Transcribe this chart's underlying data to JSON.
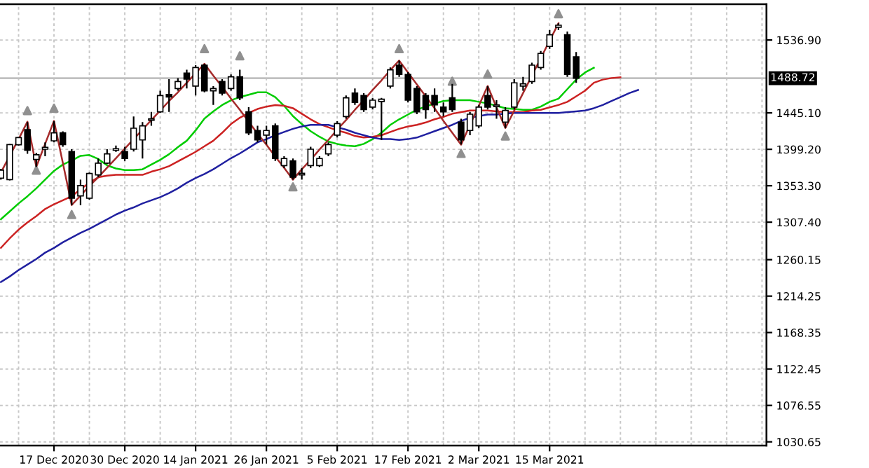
{
  "chart_data": {
    "type": "candlestick",
    "categories": [
      null,
      null,
      null,
      null,
      null,
      null,
      "17 Dec 2020",
      null,
      null,
      null,
      null,
      null,
      null,
      null,
      "30 Dec 2020",
      null,
      null,
      null,
      null,
      null,
      null,
      null,
      "14 Jan 2021",
      null,
      null,
      null,
      null,
      null,
      null,
      null,
      "26 Jan 2021",
      null,
      null,
      null,
      null,
      null,
      null,
      null,
      "5 Feb 2021",
      null,
      null,
      null,
      null,
      null,
      null,
      null,
      "17 Feb 2021",
      null,
      null,
      null,
      null,
      null,
      null,
      null,
      "2 Mar 2021",
      null,
      null,
      null,
      null,
      null,
      null,
      null,
      "15 Mar 2021",
      null,
      null,
      null,
      null,
      null,
      null,
      null,
      null,
      null,
      null,
      null,
      null,
      null,
      null,
      null,
      null,
      null,
      null,
      null,
      null,
      null,
      null,
      null,
      null
    ],
    "ohlc": [
      [
        1362.9,
        1374.6,
        1361,
        1372.9
      ],
      [
        1361,
        1406,
        1360,
        1405.2
      ],
      [
        1405,
        1415,
        1404,
        1414
      ],
      [
        1424,
        1433.5,
        1393.5,
        1398
      ],
      [
        1386.4,
        1394.6,
        1377,
        1392.3
      ],
      [
        1399.3,
        1408,
        1390.5,
        1401.7
      ],
      [
        1409.9,
        1434.6,
        1408,
        1419.9
      ],
      [
        1419.9,
        1421.7,
        1402.3,
        1405.2
      ],
      [
        1396.4,
        1399.3,
        1328.7,
        1337.6
      ],
      [
        1340.5,
        1361,
        1328.7,
        1353.5
      ],
      [
        1337.6,
        1370,
        1335.8,
        1368.8
      ],
      [
        1367,
        1387.6,
        1364,
        1381.7
      ],
      [
        1381.7,
        1399.3,
        1380.5,
        1393.5
      ],
      [
        1398,
        1404,
        1396,
        1400
      ],
      [
        1396.4,
        1402.3,
        1384.6,
        1387.6
      ],
      [
        1399.3,
        1440.5,
        1396.4,
        1425.8
      ],
      [
        1411,
        1433.5,
        1387.6,
        1428.8
      ],
      [
        1435.8,
        1446.4,
        1428.8,
        1437.6
      ],
      [
        1446.4,
        1472.9,
        1445.2,
        1467
      ],
      [
        1468.2,
        1487.6,
        1446.4,
        1465.2
      ],
      [
        1475.8,
        1488.8,
        1472.9,
        1484.6
      ],
      [
        1495.2,
        1499.4,
        1475.8,
        1487.6
      ],
      [
        1478.8,
        1505.2,
        1467,
        1502.3
      ],
      [
        1505.2,
        1507,
        1471.1,
        1472.9
      ],
      [
        1472.9,
        1478.8,
        1455.2,
        1475.8
      ],
      [
        1484.6,
        1487.6,
        1467,
        1470
      ],
      [
        1475.8,
        1493.5,
        1472.9,
        1490.5
      ],
      [
        1490.5,
        1499.4,
        1461.1,
        1464
      ],
      [
        1446.4,
        1452.3,
        1417,
        1419.9
      ],
      [
        1422.9,
        1428.8,
        1408,
        1411
      ],
      [
        1417,
        1428.8,
        1405.2,
        1422.9
      ],
      [
        1428.8,
        1431.7,
        1384.6,
        1387.6
      ],
      [
        1378.7,
        1390.5,
        1375.8,
        1387.6
      ],
      [
        1384.6,
        1387.6,
        1361,
        1364
      ],
      [
        1367,
        1375.8,
        1361,
        1369
      ],
      [
        1378.7,
        1402.3,
        1375.8,
        1399.3
      ],
      [
        1378.7,
        1390.5,
        1377,
        1387.6
      ],
      [
        1393.5,
        1408,
        1390.5,
        1405.2
      ],
      [
        1417,
        1434.6,
        1414,
        1431.7
      ],
      [
        1440.5,
        1467,
        1437.6,
        1464
      ],
      [
        1470,
        1475.8,
        1455.2,
        1458.2
      ],
      [
        1467,
        1470,
        1446.4,
        1449.3
      ],
      [
        1452.3,
        1464,
        1449.3,
        1461.1
      ],
      [
        1459.4,
        1464,
        1411,
        1462.3
      ],
      [
        1478.8,
        1502.3,
        1475.8,
        1499.4
      ],
      [
        1505.2,
        1511,
        1490.5,
        1493.5
      ],
      [
        1493.5,
        1496.4,
        1458.2,
        1461.1
      ],
      [
        1475.8,
        1478.8,
        1443.4,
        1446.4
      ],
      [
        1467,
        1470,
        1437.6,
        1449.3
      ],
      [
        1467,
        1475.8,
        1446.4,
        1455.2
      ],
      [
        1452.3,
        1458.2,
        1440.5,
        1446.4
      ],
      [
        1464,
        1481.6,
        1446.4,
        1449.3
      ],
      [
        1433.5,
        1437.6,
        1405.2,
        1411
      ],
      [
        1422.9,
        1446.4,
        1417,
        1443.4
      ],
      [
        1428.8,
        1455.2,
        1426,
        1452.3
      ],
      [
        1467,
        1478.8,
        1449.3,
        1452.3
      ],
      [
        1453,
        1461.1,
        1437.6,
        1455
      ],
      [
        1433.5,
        1452.3,
        1425.8,
        1448.2
      ],
      [
        1452.3,
        1487.6,
        1449.3,
        1482.9
      ],
      [
        1478.8,
        1490.5,
        1472.9,
        1481.7
      ],
      [
        1484.6,
        1508.2,
        1481.7,
        1505.2
      ],
      [
        1502.3,
        1523,
        1499.4,
        1520
      ],
      [
        1528.8,
        1549.4,
        1525.8,
        1543.5
      ],
      [
        1553,
        1558,
        1549.4,
        1555.5
      ],
      [
        1543.5,
        1547.6,
        1490.5,
        1493.5
      ],
      [
        1515.8,
        1521.7,
        1482.9,
        1488.7
      ],
      null,
      null,
      null,
      null,
      null,
      null,
      null,
      null,
      null,
      null,
      null,
      null,
      null,
      null,
      null,
      null,
      null,
      null,
      null,
      null,
      null
    ],
    "series": [
      {
        "type": "line",
        "color": "#00cc00",
        "values": [
          1311,
          1321,
          1331,
          1340,
          1350,
          1361,
          1372,
          1380,
          1385,
          1391,
          1392,
          1387,
          1379,
          1375,
          1373,
          1373,
          1374,
          1380,
          1386,
          1393,
          1402,
          1410,
          1423,
          1438,
          1447,
          1455,
          1461,
          1465,
          1468,
          1471,
          1471,
          1465,
          1454,
          1441,
          1431,
          1422,
          1415,
          1409,
          1406,
          1404,
          1403,
          1406,
          1412,
          1420,
          1430,
          1437,
          1443,
          1449,
          1453,
          1457,
          1460,
          1461,
          1461,
          1461,
          1459,
          1457,
          1454,
          1451,
          1450,
          1449,
          1449,
          1453,
          1459,
          1463,
          1475,
          1487,
          1496,
          1502,
          null,
          null,
          null,
          null,
          null,
          null,
          null,
          null,
          null,
          null,
          null,
          null,
          null,
          null,
          null,
          null,
          null,
          null,
          null
        ]
      },
      {
        "type": "line",
        "color": "#cc2222",
        "values": [
          1275,
          1287,
          1298,
          1307,
          1315,
          1324,
          1330,
          1335,
          1340,
          1349,
          1357,
          1364,
          1366,
          1367,
          1367,
          1367,
          1367,
          1371,
          1374,
          1378,
          1384,
          1390,
          1396,
          1403,
          1410,
          1420,
          1431,
          1439,
          1445,
          1450,
          1453,
          1455,
          1454,
          1451,
          1444,
          1437,
          1431,
          1427,
          1423,
          1420,
          1416,
          1414,
          1415,
          1417,
          1421,
          1425,
          1428,
          1430,
          1433,
          1437,
          1440,
          1444,
          1446,
          1448,
          1448,
          1448,
          1447,
          1446,
          1446,
          1446,
          1448,
          1449,
          1452,
          1455,
          1459,
          1466,
          1473,
          1483,
          1487,
          1489,
          1490,
          null,
          null,
          null,
          null,
          null,
          null,
          null,
          null,
          null,
          null,
          null,
          null,
          null,
          null,
          null,
          null
        ]
      },
      {
        "type": "line",
        "color": "#2020a0",
        "values": [
          1232,
          1239,
          1247,
          1254,
          1261,
          1269,
          1275,
          1282,
          1288,
          1294,
          1299,
          1305,
          1311,
          1317,
          1322,
          1326,
          1331,
          1335,
          1339,
          1344,
          1350,
          1357,
          1363,
          1368,
          1374,
          1381,
          1388,
          1394,
          1401,
          1408,
          1412,
          1417,
          1421,
          1425,
          1428,
          1430,
          1430,
          1430,
          1427,
          1424,
          1420,
          1417,
          1414,
          1412,
          1412,
          1411,
          1412,
          1414,
          1418,
          1422,
          1426,
          1430,
          1435,
          1439,
          1441,
          1443,
          1443,
          1444,
          1445,
          1445,
          1445,
          1445,
          1445,
          1445,
          1446,
          1447,
          1448,
          1451,
          1455,
          1460,
          1465,
          1470,
          1474,
          null,
          null,
          null,
          null,
          null,
          null,
          null,
          null,
          null,
          null,
          null,
          null,
          null,
          null
        ]
      },
      {
        "type": "line",
        "color": "#a52a2a",
        "values": [
          1370,
          1391,
          1412,
          1434,
          1377,
          1406,
          1435,
          1382,
          1329,
          1341,
          1353,
          1364,
          1376,
          1388,
          1400,
          1412,
          1424,
          1436,
          1448,
          1460,
          1471,
          1483,
          1495,
          1507,
          1492,
          1478,
          1463,
          1449,
          1434,
          1419,
          1405,
          1390,
          1376,
          1361,
          1374,
          1386,
          1399,
          1411,
          1424,
          1436,
          1449,
          1461,
          1474,
          1486,
          1499,
          1511,
          1496,
          1481,
          1466,
          1451,
          1435,
          1420,
          1405,
          1430,
          1454,
          1479,
          1452,
          1426,
          1448,
          1470,
          1492,
          1514,
          1536,
          1558,
          null,
          null,
          null,
          null,
          null,
          null,
          null,
          null,
          null,
          null,
          null,
          null,
          null,
          null,
          null,
          null,
          null,
          null,
          null,
          null,
          null,
          null,
          null
        ]
      },
      {
        "type": "scatter",
        "color": "#909090",
        "marker": "triangle",
        "values": [
          null,
          null,
          null,
          1448,
          null,
          null,
          1451,
          null,
          null,
          null,
          null,
          null,
          null,
          null,
          null,
          null,
          null,
          null,
          null,
          null,
          null,
          null,
          null,
          1526,
          null,
          null,
          null,
          1517,
          null,
          null,
          null,
          null,
          null,
          null,
          null,
          null,
          null,
          null,
          null,
          null,
          null,
          null,
          null,
          null,
          null,
          1526,
          null,
          null,
          null,
          null,
          null,
          1485,
          null,
          null,
          null,
          1494,
          null,
          null,
          null,
          null,
          null,
          null,
          null,
          1570,
          null,
          null,
          null,
          null,
          null,
          null,
          null,
          null,
          null,
          null,
          null,
          null,
          null,
          null,
          null,
          null,
          null,
          null,
          null,
          null,
          null,
          null,
          null
        ]
      },
      {
        "type": "scatter",
        "color": "#909090",
        "marker": "triangle",
        "values": [
          null,
          null,
          null,
          null,
          1373,
          null,
          null,
          null,
          1317,
          null,
          null,
          null,
          null,
          null,
          null,
          null,
          null,
          null,
          null,
          null,
          null,
          null,
          null,
          null,
          null,
          null,
          null,
          null,
          null,
          null,
          null,
          null,
          null,
          1352,
          null,
          null,
          null,
          null,
          null,
          null,
          null,
          null,
          null,
          null,
          null,
          null,
          null,
          null,
          null,
          null,
          null,
          null,
          1394,
          null,
          null,
          null,
          null,
          1416,
          null,
          null,
          null,
          null,
          null,
          null,
          null,
          null,
          null,
          null,
          null,
          null,
          null,
          null,
          null,
          null,
          null,
          null,
          null,
          null,
          null,
          null,
          null,
          null,
          null,
          null,
          null,
          null,
          null
        ]
      }
    ],
    "ref_lines": [
      {
        "axis": "y",
        "value": 1488.72,
        "label": "1488.72",
        "color": "#c0c0c0"
      }
    ],
    "ylim": [
      1026,
      1582
    ],
    "yticks": [
      {
        "value": 1030.65,
        "label": "1030.65"
      },
      {
        "value": 1076.55,
        "label": "1076.55"
      },
      {
        "value": 1122.45,
        "label": "1122.45"
      },
      {
        "value": 1168.35,
        "label": "1168.35"
      },
      {
        "value": 1214.25,
        "label": "1214.25"
      },
      {
        "value": 1260.15,
        "label": "1260.15"
      },
      {
        "value": 1307.4,
        "label": "1307.40"
      },
      {
        "value": 1353.3,
        "label": "1353.30"
      },
      {
        "value": 1399.2,
        "label": "1399.20"
      },
      {
        "value": 1445.1,
        "label": "1445.10"
      },
      {
        "value": 1536.9,
        "label": "1536.90"
      }
    ],
    "grid": true
  }
}
